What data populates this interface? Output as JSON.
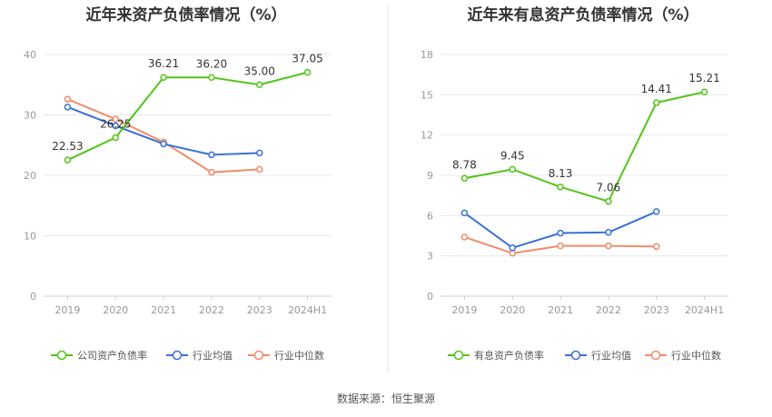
{
  "source": "数据来源：恒生聚源",
  "chart_data": [
    {
      "type": "line",
      "title": "近年来资产负债率情况（%）",
      "categories": [
        "2019",
        "2020",
        "2021",
        "2022",
        "2023",
        "2024H1"
      ],
      "ylim": [
        0,
        40
      ],
      "yticks": [
        "0",
        "10",
        "20",
        "30",
        "40"
      ],
      "grid": true,
      "legend_position": "bottom",
      "series": [
        {
          "name": "公司资产负债率",
          "color": "#52c41a",
          "values": [
            22.53,
            26.25,
            36.21,
            36.2,
            35.0,
            37.05
          ],
          "labels": [
            "22.53",
            "26.25",
            "36.21",
            "36.20",
            "35.00",
            "37.05"
          ]
        },
        {
          "name": "行业均值",
          "color": "#3b6fd6",
          "values": [
            31.3,
            28.2,
            25.2,
            23.4,
            23.7,
            null
          ]
        },
        {
          "name": "行业中位数",
          "color": "#f08c6a",
          "values": [
            32.6,
            29.3,
            25.5,
            20.5,
            21.0,
            null
          ]
        }
      ]
    },
    {
      "type": "line",
      "title": "近年来有息资产负债率情况（%）",
      "categories": [
        "2019",
        "2020",
        "2021",
        "2022",
        "2023",
        "2024H1"
      ],
      "ylim": [
        0,
        18
      ],
      "yticks": [
        "0",
        "3",
        "6",
        "9",
        "12",
        "15",
        "18"
      ],
      "grid": true,
      "legend_position": "bottom",
      "series": [
        {
          "name": "有息资产负债率",
          "color": "#52c41a",
          "values": [
            8.78,
            9.45,
            8.13,
            7.06,
            14.41,
            15.21
          ],
          "labels": [
            "8.78",
            "9.45",
            "8.13",
            "7.06",
            "14.41",
            "15.21"
          ]
        },
        {
          "name": "行业均值",
          "color": "#3b6fd6",
          "values": [
            6.2,
            3.6,
            4.7,
            4.75,
            6.3,
            null
          ]
        },
        {
          "name": "行业中位数",
          "color": "#f08c6a",
          "values": [
            4.4,
            3.2,
            3.75,
            3.75,
            3.7,
            null
          ]
        }
      ]
    }
  ]
}
